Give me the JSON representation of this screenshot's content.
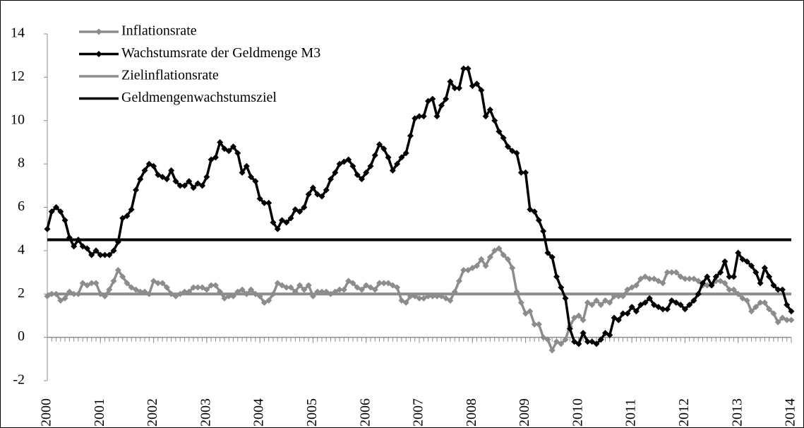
{
  "chart_data": {
    "type": "line",
    "x": [
      2000,
      2000.083,
      2000.167,
      2000.25,
      2000.333,
      2000.417,
      2000.5,
      2000.583,
      2000.667,
      2000.75,
      2000.833,
      2000.917,
      2001,
      2001.083,
      2001.167,
      2001.25,
      2001.333,
      2001.417,
      2001.5,
      2001.583,
      2001.667,
      2001.75,
      2001.833,
      2001.917,
      2002,
      2002.083,
      2002.167,
      2002.25,
      2002.333,
      2002.417,
      2002.5,
      2002.583,
      2002.667,
      2002.75,
      2002.833,
      2002.917,
      2003,
      2003.083,
      2003.167,
      2003.25,
      2003.333,
      2003.417,
      2003.5,
      2003.583,
      2003.667,
      2003.75,
      2003.833,
      2003.917,
      2004,
      2004.083,
      2004.167,
      2004.25,
      2004.333,
      2004.417,
      2004.5,
      2004.583,
      2004.667,
      2004.75,
      2004.833,
      2004.917,
      2005,
      2005.083,
      2005.167,
      2005.25,
      2005.333,
      2005.417,
      2005.5,
      2005.583,
      2005.667,
      2005.75,
      2005.833,
      2005.917,
      2006,
      2006.083,
      2006.167,
      2006.25,
      2006.333,
      2006.417,
      2006.5,
      2006.583,
      2006.667,
      2006.75,
      2006.833,
      2006.917,
      2007,
      2007.083,
      2007.167,
      2007.25,
      2007.333,
      2007.417,
      2007.5,
      2007.583,
      2007.667,
      2007.75,
      2007.833,
      2007.917,
      2008,
      2008.083,
      2008.167,
      2008.25,
      2008.333,
      2008.417,
      2008.5,
      2008.583,
      2008.667,
      2008.75,
      2008.833,
      2008.917,
      2009,
      2009.083,
      2009.167,
      2009.25,
      2009.333,
      2009.417,
      2009.5,
      2009.583,
      2009.667,
      2009.75,
      2009.833,
      2009.917,
      2010,
      2010.083,
      2010.167,
      2010.25,
      2010.333,
      2010.417,
      2010.5,
      2010.583,
      2010.667,
      2010.75,
      2010.833,
      2010.917,
      2011,
      2011.083,
      2011.167,
      2011.25,
      2011.333,
      2011.417,
      2011.5,
      2011.583,
      2011.667,
      2011.75,
      2011.833,
      2011.917,
      2012,
      2012.083,
      2012.167,
      2012.25,
      2012.333,
      2012.417,
      2012.5,
      2012.583,
      2012.667,
      2012.75,
      2012.833,
      2012.917,
      2013,
      2013.083,
      2013.167,
      2013.25,
      2013.333,
      2013.417,
      2013.5,
      2013.583,
      2013.667,
      2013.75,
      2013.833,
      2013.917,
      2014
    ],
    "series": [
      {
        "name": "Inflationsrate",
        "color": "#8c8c8c",
        "values": [
          1.9,
          2.0,
          2.0,
          1.7,
          1.8,
          2.1,
          2.0,
          2.0,
          2.5,
          2.4,
          2.5,
          2.5,
          2.0,
          1.9,
          2.2,
          2.6,
          3.1,
          2.8,
          2.5,
          2.3,
          2.2,
          2.1,
          2.1,
          2.0,
          2.6,
          2.5,
          2.5,
          2.3,
          2.0,
          1.9,
          2.0,
          2.1,
          2.1,
          2.3,
          2.3,
          2.3,
          2.2,
          2.4,
          2.4,
          2.1,
          1.8,
          1.9,
          1.9,
          2.1,
          2.2,
          2.0,
          2.2,
          2.0,
          1.9,
          1.6,
          1.7,
          2.0,
          2.5,
          2.4,
          2.3,
          2.3,
          2.1,
          2.4,
          2.2,
          2.4,
          1.9,
          2.1,
          2.1,
          2.1,
          2.0,
          2.1,
          2.2,
          2.2,
          2.6,
          2.5,
          2.3,
          2.2,
          2.4,
          2.3,
          2.2,
          2.5,
          2.5,
          2.5,
          2.4,
          2.3,
          1.7,
          1.6,
          1.9,
          1.9,
          1.8,
          1.8,
          1.9,
          1.9,
          1.9,
          1.9,
          1.8,
          1.7,
          2.1,
          2.6,
          3.1,
          3.1,
          3.2,
          3.3,
          3.6,
          3.3,
          3.7,
          4.0,
          4.1,
          3.8,
          3.6,
          3.2,
          2.1,
          1.6,
          1.1,
          1.2,
          0.6,
          0.6,
          0.0,
          -0.1,
          -0.6,
          -0.2,
          -0.3,
          -0.1,
          0.5,
          0.9,
          1.0,
          0.8,
          1.6,
          1.5,
          1.7,
          1.5,
          1.7,
          1.6,
          1.9,
          1.9,
          1.9,
          2.2,
          2.3,
          2.4,
          2.7,
          2.8,
          2.7,
          2.7,
          2.6,
          2.5,
          3.0,
          3.0,
          3.0,
          2.8,
          2.7,
          2.7,
          2.7,
          2.6,
          2.4,
          2.4,
          2.4,
          2.6,
          2.6,
          2.5,
          2.2,
          2.2,
          2.0,
          1.8,
          1.7,
          1.2,
          1.4,
          1.6,
          1.6,
          1.3,
          1.1,
          0.7,
          0.9,
          0.8,
          0.8
        ]
      },
      {
        "name": "Wachstumsrate der Geldmenge M3",
        "color": "#000000",
        "values": [
          5.0,
          5.8,
          6.0,
          5.8,
          5.4,
          4.6,
          4.2,
          4.5,
          4.2,
          4.1,
          3.8,
          4.0,
          3.8,
          3.8,
          3.8,
          4.0,
          4.4,
          5.5,
          5.6,
          5.9,
          6.8,
          7.3,
          7.7,
          8.0,
          7.9,
          7.5,
          7.4,
          7.3,
          7.7,
          7.2,
          7.0,
          7.0,
          7.2,
          6.9,
          7.1,
          7.0,
          7.4,
          8.2,
          8.3,
          9.0,
          8.7,
          8.6,
          8.8,
          8.5,
          7.6,
          7.9,
          7.4,
          7.2,
          6.4,
          6.2,
          6.2,
          5.3,
          5.0,
          5.4,
          5.3,
          5.5,
          5.9,
          5.8,
          6.0,
          6.6,
          6.9,
          6.6,
          6.5,
          6.8,
          7.3,
          7.6,
          8.0,
          8.1,
          8.2,
          7.9,
          7.5,
          7.3,
          7.6,
          7.9,
          8.4,
          8.9,
          8.7,
          8.3,
          7.7,
          8.0,
          8.3,
          8.5,
          9.3,
          10.1,
          10.2,
          10.2,
          10.9,
          11.0,
          10.2,
          10.7,
          11.0,
          11.8,
          11.5,
          11.5,
          12.4,
          12.4,
          11.6,
          11.7,
          11.4,
          10.2,
          10.5,
          10.0,
          9.5,
          9.2,
          8.8,
          8.6,
          8.5,
          7.6,
          7.6,
          5.9,
          5.8,
          5.4,
          4.9,
          3.9,
          3.7,
          2.8,
          2.3,
          1.8,
          0.4,
          -0.2,
          -0.3,
          0.2,
          -0.2,
          -0.2,
          -0.3,
          -0.1,
          0.2,
          0.1,
          0.9,
          0.8,
          1.1,
          1.1,
          1.4,
          1.2,
          1.5,
          1.6,
          1.8,
          1.5,
          1.4,
          1.3,
          1.3,
          1.7,
          1.6,
          1.5,
          1.3,
          1.5,
          1.7,
          2.0,
          2.5,
          2.8,
          2.4,
          2.8,
          3.0,
          3.5,
          2.8,
          2.8,
          3.9,
          3.6,
          3.5,
          3.3,
          3.0,
          2.5,
          3.2,
          2.8,
          2.4,
          2.2,
          2.2,
          1.5,
          1.2
        ]
      }
    ],
    "reference_lines": [
      {
        "name": "Zielinflationsrate",
        "color": "#8c8c8c",
        "value": 2
      },
      {
        "name": "Geldmengenwachstumsziel",
        "color": "#000000",
        "value": 4.5
      }
    ],
    "xlim": [
      2000,
      2014
    ],
    "xticks": [
      2000,
      2001,
      2002,
      2003,
      2004,
      2005,
      2006,
      2007,
      2008,
      2009,
      2010,
      2011,
      2012,
      2013,
      2014
    ],
    "ylim": [
      -2,
      14
    ],
    "yticks": [
      -2,
      0,
      2,
      4,
      6,
      8,
      10,
      12,
      14
    ],
    "grid": false,
    "legend": "upper left"
  }
}
